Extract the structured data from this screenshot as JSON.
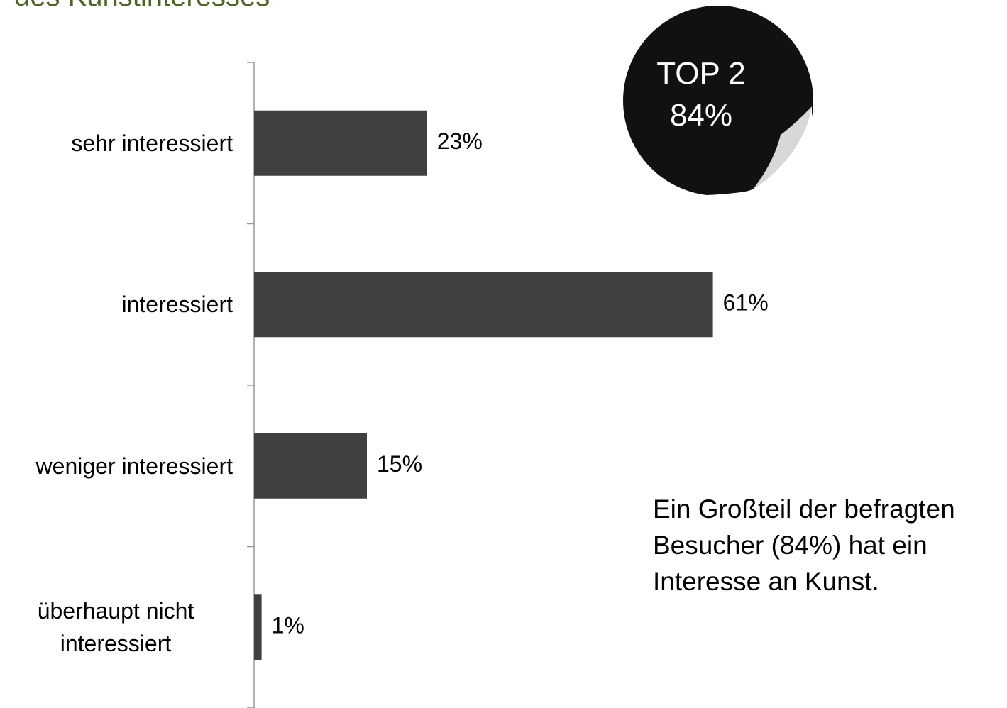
{
  "chart_data": {
    "type": "hbar",
    "title": "des Kunstinteresses",
    "categories": [
      "sehr interessiert",
      "interessiert",
      "weniger interessiert",
      "überhaupt nicht interessiert"
    ],
    "values": [
      23,
      61,
      15,
      1
    ],
    "value_labels": [
      "23%",
      "61%",
      "15%",
      "1%"
    ],
    "color": "#404040",
    "xlim": [
      0,
      100
    ],
    "badge": {
      "line1": "TOP 2",
      "line2": "84%"
    },
    "annotation": "Ein Großteil der befragten Besucher (84%) hat ein Interesse an Kunst."
  }
}
